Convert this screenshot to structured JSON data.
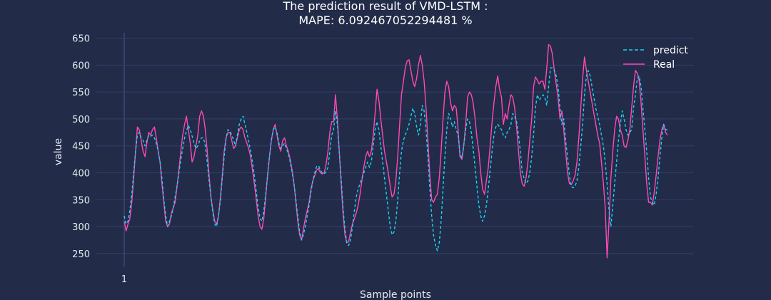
{
  "chart_data": {
    "type": "line",
    "title_line1": "The prediction result of VMD-LSTM :",
    "title_line2": "MAPE: 6.092467052294481 %",
    "xlabel": "Sample points",
    "ylabel": "value",
    "x_ticks": [
      1
    ],
    "x_range": [
      1,
      258
    ],
    "ylim": [
      218,
      660
    ],
    "y_ticks": [
      250,
      300,
      350,
      400,
      450,
      500,
      550,
      600,
      650
    ],
    "grid": true,
    "legend_position": "top-right",
    "colors": {
      "background": "#222b47",
      "grid": "#34406a",
      "predict": "#19d3f3",
      "real": "#ff49b4"
    },
    "series": [
      {
        "name": "predict",
        "dash": "dashed",
        "values": [
          320,
          305,
          310,
          330,
          360,
          400,
          440,
          470,
          475,
          465,
          460,
          450,
          460,
          470,
          468,
          470,
          465,
          455,
          440,
          420,
          390,
          350,
          320,
          300,
          310,
          320,
          335,
          355,
          375,
          400,
          425,
          445,
          465,
          478,
          488,
          480,
          468,
          455,
          445,
          450,
          460,
          465,
          465,
          450,
          420,
          385,
          355,
          325,
          305,
          300,
          320,
          350,
          390,
          430,
          465,
          480,
          478,
          470,
          460,
          450,
          470,
          490,
          500,
          505,
          490,
          475,
          458,
          440,
          420,
          395,
          365,
          335,
          315,
          310,
          330,
          360,
          395,
          430,
          460,
          480,
          485,
          475,
          455,
          445,
          450,
          455,
          445,
          435,
          420,
          400,
          380,
          350,
          320,
          290,
          275,
          285,
          300,
          320,
          340,
          365,
          385,
          400,
          412,
          413,
          405,
          400,
          398,
          402,
          410,
          440,
          470,
          480,
          515,
          490,
          440,
          390,
          335,
          295,
          270,
          265,
          275,
          300,
          330,
          355,
          370,
          380,
          390,
          400,
          410,
          420,
          410,
          420,
          450,
          480,
          495,
          480,
          450,
          420,
          390,
          360,
          330,
          300,
          285,
          290,
          310,
          350,
          400,
          440,
          460,
          470,
          480,
          490,
          505,
          520,
          510,
          485,
          470,
          490,
          525,
          515,
          480,
          430,
          370,
          320,
          285,
          265,
          255,
          270,
          310,
          370,
          430,
          480,
          510,
          500,
          485,
          495,
          480,
          470,
          435,
          428,
          450,
          480,
          500,
          495,
          475,
          445,
          410,
          375,
          340,
          320,
          310,
          320,
          340,
          370,
          405,
          440,
          470,
          485,
          490,
          485,
          480,
          470,
          465,
          475,
          480,
          490,
          510,
          505,
          495,
          470,
          440,
          400,
          390,
          380,
          385,
          400,
          430,
          470,
          520,
          545,
          535,
          540,
          545,
          540,
          525,
          560,
          595,
          595,
          590,
          580,
          560,
          520,
          490,
          500,
          460,
          430,
          395,
          375,
          372,
          375,
          385,
          410,
          450,
          490,
          545,
          580,
          590,
          580,
          560,
          540,
          520,
          505,
          490,
          470,
          450,
          420,
          380,
          330,
          300,
          340,
          380,
          420,
          460,
          490,
          515,
          500,
          480,
          470,
          475,
          480,
          520,
          545,
          575,
          580,
          560,
          520,
          480,
          440,
          390,
          355,
          345,
          340,
          360,
          390,
          430,
          465,
          490,
          480,
          480
        ]
      },
      {
        "name": "Real",
        "dash": "solid",
        "values": [
          310,
          292,
          305,
          315,
          345,
          390,
          440,
          485,
          480,
          460,
          440,
          430,
          455,
          475,
          470,
          480,
          485,
          465,
          440,
          420,
          380,
          345,
          310,
          300,
          305,
          325,
          335,
          345,
          375,
          405,
          440,
          470,
          490,
          505,
          480,
          455,
          420,
          430,
          450,
          470,
          505,
          515,
          505,
          480,
          440,
          395,
          355,
          330,
          310,
          305,
          320,
          355,
          395,
          440,
          465,
          475,
          475,
          460,
          445,
          450,
          465,
          480,
          485,
          480,
          465,
          455,
          445,
          430,
          405,
          380,
          350,
          320,
          300,
          295,
          315,
          355,
          395,
          430,
          460,
          480,
          490,
          470,
          450,
          440,
          460,
          465,
          450,
          440,
          425,
          405,
          380,
          345,
          310,
          285,
          275,
          295,
          315,
          330,
          345,
          370,
          385,
          395,
          405,
          408,
          400,
          398,
          400,
          415,
          440,
          475,
          495,
          495,
          545,
          500,
          440,
          380,
          325,
          285,
          270,
          272,
          290,
          305,
          315,
          325,
          340,
          360,
          385,
          410,
          430,
          440,
          430,
          440,
          470,
          510,
          555,
          535,
          500,
          470,
          440,
          420,
          400,
          375,
          355,
          360,
          385,
          430,
          490,
          545,
          570,
          595,
          608,
          610,
          590,
          570,
          560,
          575,
          600,
          618,
          600,
          570,
          520,
          460,
          395,
          350,
          345,
          355,
          360,
          390,
          440,
          500,
          550,
          570,
          560,
          530,
          515,
          525,
          520,
          480,
          430,
          425,
          450,
          490,
          540,
          550,
          545,
          530,
          500,
          465,
          440,
          400,
          370,
          360,
          385,
          410,
          450,
          495,
          530,
          560,
          580,
          555,
          540,
          490,
          510,
          500,
          525,
          545,
          540,
          520,
          485,
          440,
          400,
          380,
          375,
          390,
          420,
          460,
          500,
          560,
          578,
          572,
          565,
          570,
          570,
          555,
          595,
          638,
          635,
          620,
          590,
          565,
          540,
          500,
          515,
          480,
          440,
          400,
          380,
          378,
          385,
          395,
          420,
          465,
          520,
          575,
          615,
          590,
          570,
          550,
          530,
          510,
          490,
          470,
          455,
          420,
          380,
          335,
          242,
          310,
          390,
          440,
          480,
          505,
          500,
          480,
          470,
          450,
          447,
          460,
          480,
          520,
          560,
          590,
          585,
          570,
          530,
          480,
          430,
          380,
          345,
          345,
          340,
          365,
          395,
          430,
          460,
          480,
          490,
          475,
          470
        ]
      }
    ]
  }
}
